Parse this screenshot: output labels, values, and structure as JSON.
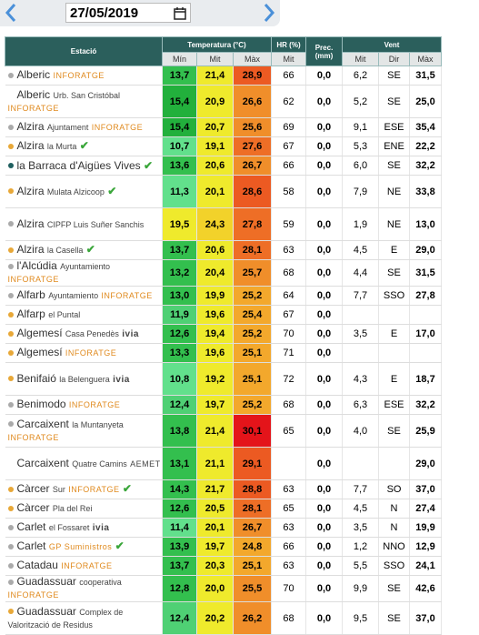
{
  "date": "27/05/2019",
  "header": {
    "station": "Estació",
    "temp": "Temperatura (°C)",
    "hr": "HR (%)",
    "prec": "Prec. (mm)",
    "wind": "Vent",
    "sub": [
      "Mín",
      "Mit",
      "Màx",
      "Mit",
      "Mit",
      "Dir",
      "Màx"
    ]
  },
  "rows": [
    {
      "name": "Alberic",
      "tag": "INFORATGE",
      "dot": "#aaaaaa",
      "min": "13,7",
      "mit": "21,4",
      "max": "28,9",
      "hr": "66",
      "prec": "0,0",
      "wmit": "6,2",
      "dir": "SE",
      "wmax": "31,5"
    },
    {
      "name": "Alberic",
      "sub": "Urb. San Cristóbal",
      "tag": "INFORATGE",
      "min": "15,4",
      "mit": "20,9",
      "max": "26,6",
      "hr": "62",
      "prec": "0,0",
      "wmit": "5,2",
      "dir": "SE",
      "wmax": "25,0"
    },
    {
      "name": "Alzira",
      "sub": "Ajuntament",
      "tag": "INFORATGE",
      "dot": "#aaaaaa",
      "min": "15,4",
      "mit": "20,7",
      "max": "25,6",
      "hr": "69",
      "prec": "0,0",
      "wmit": "9,1",
      "dir": "ESE",
      "wmax": "35,4"
    },
    {
      "name": "Alzira",
      "sub": "la Murta",
      "check": true,
      "dot": "#e8a838",
      "min": "10,7",
      "mit": "19,1",
      "max": "27,6",
      "hr": "67",
      "prec": "0,0",
      "wmit": "5,3",
      "dir": "ENE",
      "wmax": "22,2"
    },
    {
      "name": "la Barraca d'Aigües Vives",
      "check": true,
      "dot": "#1f5f5f",
      "min": "13,6",
      "mit": "20,6",
      "max": "26,7",
      "hr": "66",
      "prec": "0,0",
      "wmit": "6,0",
      "dir": "SE",
      "wmax": "32,2"
    },
    {
      "name": "Alzira",
      "sub": "Mulata Alzicoop",
      "check": true,
      "dot": "#e8a838",
      "min": "11,3",
      "mit": "20,1",
      "max": "28,6",
      "hr": "58",
      "prec": "0,0",
      "wmit": "7,9",
      "dir": "NE",
      "wmax": "33,8"
    },
    {
      "name": "Alzira",
      "sub": "CIPFP Luis Suñer Sanchis",
      "dot": "#aaaaaa",
      "min": "19,5",
      "mit": "24,3",
      "max": "27,8",
      "hr": "59",
      "prec": "0,0",
      "wmit": "1,9",
      "dir": "NE",
      "wmax": "13,0"
    },
    {
      "name": "Alzira",
      "sub": "la Casella",
      "check": true,
      "dot": "#e8a838",
      "min": "13,7",
      "mit": "20,6",
      "max": "28,1",
      "hr": "63",
      "prec": "0,0",
      "wmit": "4,5",
      "dir": "E",
      "wmax": "29,0"
    },
    {
      "name": "l'Alcúdia",
      "sub": "Ayuntamiento",
      "tag": "INFORATGE",
      "dot": "#aaaaaa",
      "min": "13,2",
      "mit": "20,4",
      "max": "25,7",
      "hr": "68",
      "prec": "0,0",
      "wmit": "4,4",
      "dir": "SE",
      "wmax": "31,5"
    },
    {
      "name": "Alfarb",
      "sub": "Ayuntamiento",
      "tag": "INFORATGE",
      "dot": "#aaaaaa",
      "min": "13,0",
      "mit": "19,9",
      "max": "25,2",
      "hr": "64",
      "prec": "0,0",
      "wmit": "7,7",
      "dir": "SSO",
      "wmax": "27,8"
    },
    {
      "name": "Alfarp",
      "sub": "el Puntal",
      "dot": "#e8a838",
      "min": "11,9",
      "mit": "19,6",
      "max": "25,4",
      "hr": "67",
      "prec": "0,0"
    },
    {
      "name": "Algemesí",
      "sub": "Casa Penedès",
      "tag": "ivia",
      "dot": "#e8a838",
      "min": "12,6",
      "mit": "19,4",
      "max": "25,2",
      "hr": "70",
      "prec": "0,0",
      "wmit": "3,5",
      "dir": "E",
      "wmax": "17,0"
    },
    {
      "name": "Algemesí",
      "tag": "INFORATGE",
      "dot": "#e8a838",
      "min": "13,3",
      "mit": "19,6",
      "max": "25,1",
      "hr": "71",
      "prec": "0,0"
    },
    {
      "name": "Benifaió",
      "sub": "la Belenguera",
      "tag": "ivia",
      "dot": "#e8a838",
      "min": "10,8",
      "mit": "19,2",
      "max": "25,1",
      "hr": "72",
      "prec": "0,0",
      "wmit": "4,3",
      "dir": "E",
      "wmax": "18,7"
    },
    {
      "name": "Benimodo",
      "tag": "INFORATGE",
      "dot": "#aaaaaa",
      "min": "12,4",
      "mit": "19,7",
      "max": "25,2",
      "hr": "68",
      "prec": "0,0",
      "wmit": "6,3",
      "dir": "ESE",
      "wmax": "32,2"
    },
    {
      "name": "Carcaixent",
      "sub": "la Muntanyeta",
      "tag": "INFORATGE",
      "dot": "#aaaaaa",
      "min": "13,8",
      "mit": "21,4",
      "max": "30,1",
      "hr": "65",
      "prec": "0,0",
      "wmit": "4,0",
      "dir": "SE",
      "wmax": "25,9"
    },
    {
      "name": "Carcaixent",
      "sub": "Quatre Camins",
      "tag": "AEMET",
      "min": "13,1",
      "mit": "21,1",
      "max": "29,1",
      "prec": "0,0",
      "wmax": "29,0"
    },
    {
      "name": "Càrcer",
      "sub": "Sur",
      "tag": "INFORATGE",
      "check": true,
      "dot": "#e8a838",
      "min": "14,3",
      "mit": "21,7",
      "max": "28,8",
      "hr": "63",
      "prec": "0,0",
      "wmit": "7,7",
      "dir": "SO",
      "wmax": "37,0"
    },
    {
      "name": "Càrcer",
      "sub": "Pla del Rei",
      "dot": "#e8a838",
      "min": "12,6",
      "mit": "20,5",
      "max": "28,1",
      "hr": "65",
      "prec": "0,0",
      "wmit": "4,5",
      "dir": "N",
      "wmax": "27,4"
    },
    {
      "name": "Carlet",
      "sub": "el Fossaret",
      "tag": "ivia",
      "dot": "#aaaaaa",
      "min": "11,4",
      "mit": "20,1",
      "max": "26,7",
      "hr": "63",
      "prec": "0,0",
      "wmit": "3,5",
      "dir": "N",
      "wmax": "19,9"
    },
    {
      "name": "Carlet",
      "tag": "GP Suministros",
      "check": true,
      "dot": "#aaaaaa",
      "min": "13,9",
      "mit": "19,7",
      "max": "24,8",
      "hr": "66",
      "prec": "0,0",
      "wmit": "1,2",
      "dir": "NNO",
      "wmax": "12,9"
    },
    {
      "name": "Catadau",
      "tag": "INFORATGE",
      "dot": "#aaaaaa",
      "min": "13,7",
      "mit": "20,3",
      "max": "25,1",
      "hr": "63",
      "prec": "0,0",
      "wmit": "5,5",
      "dir": "SSO",
      "wmax": "24,1"
    },
    {
      "name": "Guadassuar",
      "sub": "cooperativa",
      "tag": "INFORATGE",
      "dot": "#aaaaaa",
      "min": "12,8",
      "mit": "20,0",
      "max": "25,5",
      "hr": "70",
      "prec": "0,0",
      "wmit": "9,9",
      "dir": "SE",
      "wmax": "42,6"
    },
    {
      "name": "Guadassuar",
      "sub": "Complex de Valorització de Residus",
      "dot": "#e8a838",
      "min": "12,4",
      "mit": "20,2",
      "max": "26,2",
      "hr": "68",
      "prec": "0,0",
      "wmit": "9,5",
      "dir": "SE",
      "wmax": "37,0"
    }
  ]
}
